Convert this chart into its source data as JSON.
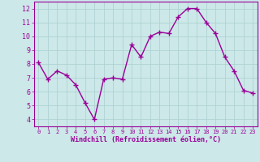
{
  "x": [
    0,
    1,
    2,
    3,
    4,
    5,
    6,
    7,
    8,
    9,
    10,
    11,
    12,
    13,
    14,
    15,
    16,
    17,
    18,
    19,
    20,
    21,
    22,
    23
  ],
  "y": [
    8.1,
    6.9,
    7.5,
    7.2,
    6.5,
    5.2,
    4.0,
    6.9,
    7.0,
    6.9,
    9.4,
    8.5,
    10.0,
    10.3,
    10.2,
    11.4,
    12.0,
    12.0,
    11.0,
    10.2,
    8.5,
    7.5,
    6.1,
    5.9
  ],
  "line_color": "#990099",
  "marker": "+",
  "markersize": 4,
  "linewidth": 1.0,
  "xlabel": "Windchill (Refroidissement éolien,°C)",
  "xlim": [
    -0.5,
    23.5
  ],
  "ylim": [
    3.5,
    12.5
  ],
  "yticks": [
    4,
    5,
    6,
    7,
    8,
    9,
    10,
    11,
    12
  ],
  "xticks": [
    0,
    1,
    2,
    3,
    4,
    5,
    6,
    7,
    8,
    9,
    10,
    11,
    12,
    13,
    14,
    15,
    16,
    17,
    18,
    19,
    20,
    21,
    22,
    23
  ],
  "bg_color": "#cce8e8",
  "grid_color": "#aacfcf",
  "tick_color": "#990099",
  "label_color": "#990099",
  "spine_color": "#990099"
}
